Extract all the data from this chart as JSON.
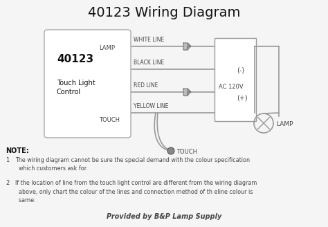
{
  "title": "40123 Wiring Diagram",
  "title_fontsize": 14,
  "bg_color": "#f5f5f5",
  "box_label_main": "40123",
  "box_label_sub": "Touch Light\nControl",
  "wire_labels": [
    "WHITE LINE",
    "BLACK LINE",
    "RED LINE",
    "YELLOW LINE"
  ],
  "right_label_neg": "(-)",
  "right_label_pos": "(+)",
  "ac_label": "AC 120V",
  "lamp_label": "LAMP",
  "touch_label": "TOUCH",
  "note_title": "NOTE:",
  "note1_num": "1",
  "note1_text": "The wiring diagram cannot be sure the special demand with the colour specification\n  which customers ask for.",
  "note2_num": "2",
  "note2_text": "If the location of line from the touch light control are different from the wiring diagram\n  above, only chart the colour of the lines and connection method of th eline colour is\n  same.",
  "footer": "Provided by B&P Lamp Supply",
  "line_color": "#999999",
  "text_color": "#444444",
  "box_edge_color": "#aaaaaa"
}
